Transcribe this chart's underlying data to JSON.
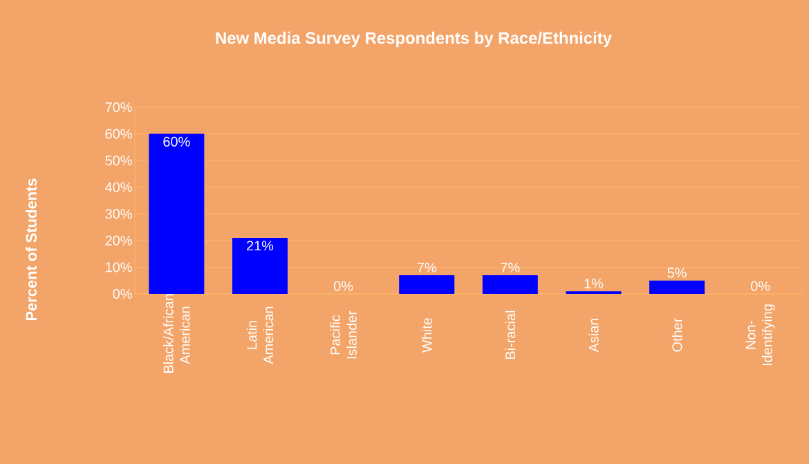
{
  "chart_data": {
    "type": "bar",
    "title": "New Media Survey Respondents by Race/Ethnicity",
    "ylabel": "Percent of Students",
    "categories": [
      "Black/African American",
      "Latin American",
      "Pacific Islander",
      "White",
      "Bi-racial",
      "Asian",
      "Other",
      "Non-Identifying"
    ],
    "values": [
      60,
      21,
      0,
      7,
      7,
      1,
      5,
      0
    ],
    "color": "#0000ff",
    "data_labels": true,
    "value_labels": [
      "60%",
      "21%",
      "0%",
      "7%",
      "7%",
      "1%",
      "5%",
      "0%"
    ],
    "ylim": [
      0,
      70
    ],
    "yticks": [
      {
        "value": 0,
        "label": "0%"
      },
      {
        "value": 10,
        "label": "10%"
      },
      {
        "value": 20,
        "label": "20%"
      },
      {
        "value": 30,
        "label": "30%"
      },
      {
        "value": 40,
        "label": "40%"
      },
      {
        "value": 50,
        "label": "50%"
      },
      {
        "value": 60,
        "label": "60%"
      },
      {
        "value": 70,
        "label": "70%"
      }
    ],
    "grid": "y"
  }
}
